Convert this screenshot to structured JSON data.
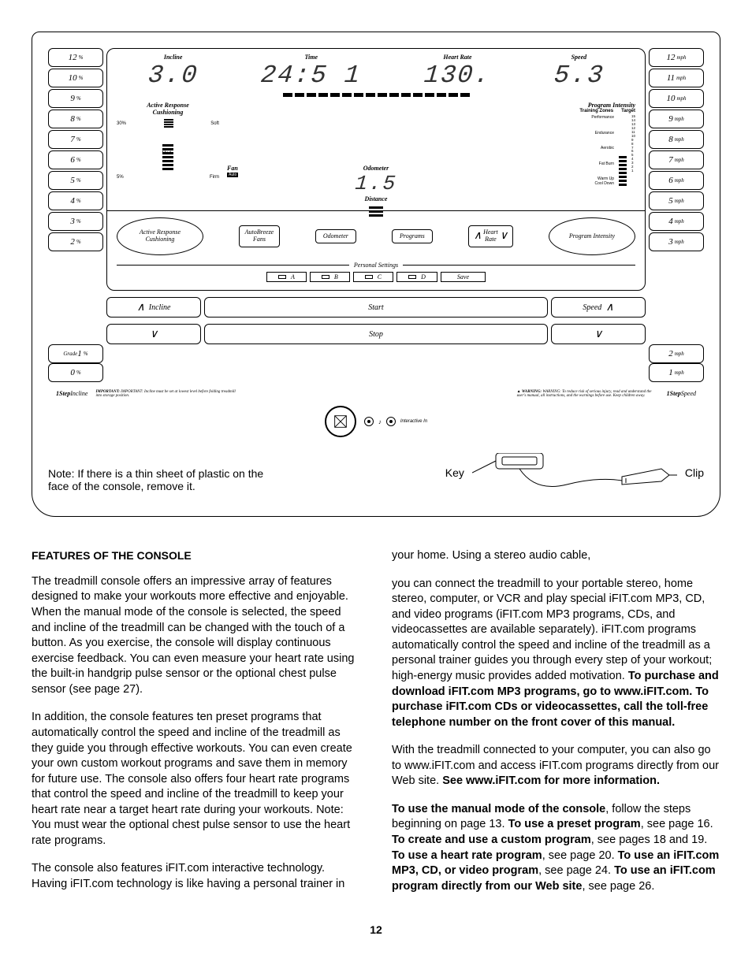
{
  "incline_buttons": [
    {
      "num": "12",
      "unit": "%"
    },
    {
      "num": "10",
      "unit": "%"
    },
    {
      "num": "9",
      "unit": "%"
    },
    {
      "num": "8",
      "unit": "%"
    },
    {
      "num": "7",
      "unit": "%"
    },
    {
      "num": "6",
      "unit": "%"
    },
    {
      "num": "5",
      "unit": "%"
    },
    {
      "num": "4",
      "unit": "%"
    },
    {
      "num": "3",
      "unit": "%"
    },
    {
      "num": "2",
      "unit": "%"
    }
  ],
  "incline_bottom": [
    {
      "pre": "Grade",
      "num": "1",
      "unit": "%"
    },
    {
      "num": "0",
      "unit": "%"
    }
  ],
  "speed_buttons": [
    {
      "num": "12",
      "unit": "mph"
    },
    {
      "num": "11",
      "unit": "mph"
    },
    {
      "num": "10",
      "unit": "mph"
    },
    {
      "num": "9",
      "unit": "mph"
    },
    {
      "num": "8",
      "unit": "mph"
    },
    {
      "num": "7",
      "unit": "mph"
    },
    {
      "num": "6",
      "unit": "mph"
    },
    {
      "num": "5",
      "unit": "mph"
    },
    {
      "num": "4",
      "unit": "mph"
    },
    {
      "num": "3",
      "unit": "mph"
    }
  ],
  "speed_bottom": [
    {
      "num": "2",
      "unit": "mph"
    },
    {
      "num": "1",
      "unit": "mph"
    }
  ],
  "display": {
    "incline_label": "Incline",
    "incline_val": "3.0",
    "time_label": "Time",
    "time_val": "24:5 1",
    "hr_label": "Heart Rate",
    "hr_val": "130.",
    "speed_label": "Speed",
    "speed_val": "5.3",
    "odometer_label": "Odometer",
    "odometer_val": "1.5",
    "distance_label": "Distance",
    "fan_label": "Fan",
    "fan_mode": "Auto"
  },
  "cushion": {
    "title1": "Active Response",
    "title2": "Cushioning",
    "soft": "Soft",
    "med": "Med",
    "firm": "Firm",
    "p30": "30%",
    "p5": "5%"
  },
  "intensity": {
    "title": "Program Intensity",
    "tz": "Training Zones",
    "target": "Target",
    "zones": [
      "Performance",
      "Endurance",
      "Aerobic",
      "Fat Burn",
      "Warm Up\nCool Down"
    ],
    "levels": [
      "15",
      "14",
      "13",
      "12",
      "11",
      "10",
      "9",
      "8",
      "7",
      "6",
      "5",
      "4",
      "3",
      "2",
      "1"
    ]
  },
  "buttons": {
    "arc_left_t": "Active Response",
    "arc_left_b": "Cushioning",
    "autobreeze": "AutoBreeze\nFans",
    "odometer": "Odometer",
    "programs": "Programs",
    "heart": "Heart\nRate",
    "prog_int": "Program Intensity",
    "personal": "Personal Settings",
    "slots": [
      "A",
      "B",
      "C",
      "D"
    ],
    "save": "Save",
    "incline": "Incline",
    "speed": "Speed",
    "start": "Start",
    "stop": "Stop"
  },
  "labels": {
    "onestep_incline": "1StepIncline",
    "onestep_speed": "1StepSpeed",
    "important": "IMPORTANT: Incline must be set at lowest level before folding treadmill into storage position.",
    "warning": "WARNING: To reduce risk of serious injury, read and understand the user's manual, all instructions, and the warnings before use. Keep children away.",
    "interactive": "Interactive In"
  },
  "note": {
    "text": "Note: If there is a thin sheet of plastic on the face of the console, remove it.",
    "key": "Key",
    "clip": "Clip"
  },
  "article": {
    "heading": "FEATURES OF THE CONSOLE",
    "p1": "The treadmill console offers an impressive array of features designed to make your workouts more effective and enjoyable. When the manual mode of the console is selected, the speed and incline of the treadmill can be changed with the touch of a button. As you exercise, the console will display continuous exercise feedback. You can even measure your heart rate using the built-in handgrip pulse sensor or the optional chest pulse sensor (see page 27).",
    "p2": "In addition, the console features ten preset programs that automatically control the speed and incline of the treadmill as they guide you through effective workouts. You can even create your own custom workout programs and save them in memory for future use. The console also offers four heart rate programs that control the speed and incline of the treadmill to keep your heart rate near a target heart rate during your workouts. Note: You must wear the optional chest pulse sensor to use the heart rate programs.",
    "p3": "The console also features iFIT.com interactive technology. Having iFIT.com technology is like having a personal trainer in your home. Using a stereo audio cable,",
    "p4a": "you can connect the treadmill to your portable stereo, home stereo, computer, or VCR and play special iFIT.com MP3, CD, and video programs (iFIT.com MP3 programs, CDs, and videocassettes are available separately). iFIT.com programs automatically control the speed and incline of the treadmill as a personal trainer guides you through every step of your workout; high-energy music provides added motivation. ",
    "p4b": "To purchase and download iFIT.com MP3 programs, go to www.iFIT.com. To purchase iFIT.com CDs or videocassettes, call the toll-free telephone number on the front cover of this manual.",
    "p5a": "With the treadmill connected to your computer, you can also go to www.iFIT.com and access iFIT.com programs directly from our Web site. ",
    "p5b": "See www.iFIT.com for more information.",
    "p6pre": "To use the manual mode of the console",
    "p6a": ", follow the steps beginning on page 13. ",
    "p6b": "To use a preset program",
    "p6c": ", see page 16. ",
    "p6d": "To create and use a custom program",
    "p6e": ", see pages 18 and 19. ",
    "p6f": "To use a heart rate program",
    "p6g": ", see page 20. ",
    "p6h": "To use an iFIT.com MP3, CD, or video program",
    "p6i": ", see page 24. ",
    "p6j": "To use an iFIT.com program directly from our Web site",
    "p6k": ", see page 26."
  },
  "page": "12"
}
